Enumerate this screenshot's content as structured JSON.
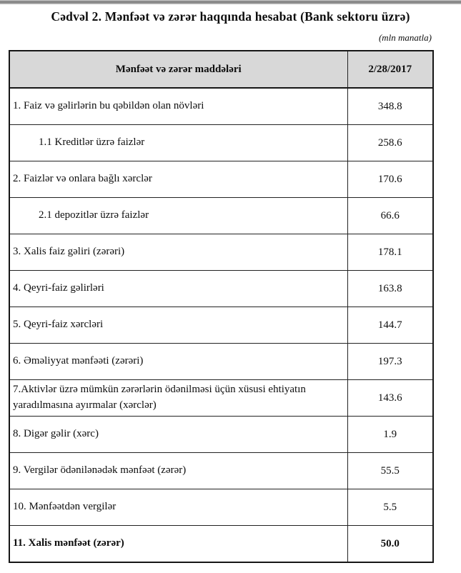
{
  "page": {
    "title": "Cədvəl 2. Mənfəət və zərər haqqında hesabat (Bank sektoru üzrə)",
    "unit_note": "(mln manatla)"
  },
  "colors": {
    "header_background": "#d8d8d8",
    "border": "#161616",
    "text": "#0e0e0e"
  },
  "table": {
    "headers": {
      "items_column": "Mənfəət və zərər maddələri",
      "date_column": "2/28/2017"
    },
    "rows": [
      {
        "label": "1. Faiz və gəlirlərin bu qəbildən olan növləri",
        "value": "348.8",
        "indent": false,
        "tall": false,
        "bold": false
      },
      {
        "label": "1.1 Kreditlər üzrə faizlər",
        "value": "258.6",
        "indent": true,
        "tall": false,
        "bold": false
      },
      {
        "label": "2. Faizlər və onlara bağlı xərclər",
        "value": "170.6",
        "indent": false,
        "tall": false,
        "bold": false
      },
      {
        "label": "2.1 depozitlər üzrə faizlər",
        "value": "66.6",
        "indent": true,
        "tall": false,
        "bold": false
      },
      {
        "label": "3. Xalis faiz gəliri (zərəri)",
        "value": "178.1",
        "indent": false,
        "tall": false,
        "bold": false
      },
      {
        "label": "4. Qeyri-faiz gəlirləri",
        "value": "163.8",
        "indent": false,
        "tall": false,
        "bold": false
      },
      {
        "label": "5. Qeyri-faiz xərcləri",
        "value": "144.7",
        "indent": false,
        "tall": false,
        "bold": false
      },
      {
        "label": "6. Əməliyyat mənfəəti (zərəri)",
        "value": "197.3",
        "indent": false,
        "tall": false,
        "bold": false
      },
      {
        "label": "7.Aktivlər üzrə mümkün zərərlərin ödənilməsi üçün xüsusi ehtiyatın yaradılmasına ayırmalar (xərclər)",
        "value": "143.6",
        "indent": false,
        "tall": true,
        "bold": false
      },
      {
        "label": "8. Digər gəlir (xərc)",
        "value": "1.9",
        "indent": false,
        "tall": false,
        "bold": false
      },
      {
        "label": "9. Vergilər ödənilənədək mənfəət (zərər)",
        "value": "55.5",
        "indent": false,
        "tall": false,
        "bold": false
      },
      {
        "label": "10. Mənfəətdən vergilər",
        "value": "5.5",
        "indent": false,
        "tall": false,
        "bold": false
      },
      {
        "label": "11. Xalis mənfəət (zərər)",
        "value": "50.0",
        "indent": false,
        "tall": false,
        "bold": true,
        "last": true
      }
    ]
  }
}
